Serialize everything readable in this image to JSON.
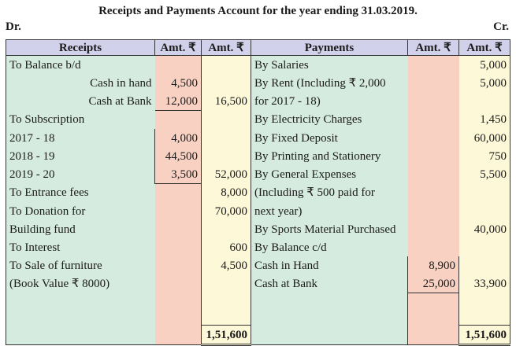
{
  "title": "Receipts and Payments Account for the year ending 31.03.2019.",
  "dr": "Dr.",
  "cr": "Cr.",
  "headers": {
    "receipts": "Receipts",
    "payments": "Payments",
    "amt": "Amt. ₹"
  },
  "rows": [
    {
      "r": "To Balance b/d",
      "ra": "",
      "rb": "",
      "p": "By Salaries",
      "pa": "",
      "pb": "5,000"
    },
    {
      "r": "Cash in hand",
      "ra": "4,500",
      "rb": "",
      "p": "By Rent (Including ₹ 2,000",
      "pa": "",
      "pb": "5,000"
    },
    {
      "r": "Cash at Bank",
      "ra": "12,000",
      "rb": "16,500",
      "p": "for 2017 - 18)",
      "pa": "",
      "pb": ""
    },
    {
      "r": "To Subscription",
      "ra": "",
      "rb": "",
      "p": "By Electricity Charges",
      "pa": "",
      "pb": "1,450"
    },
    {
      "r": "2017 - 18",
      "ra": "4,000",
      "rb": "",
      "p": "By Fixed Deposit",
      "pa": "",
      "pb": "60,000"
    },
    {
      "r": "2018 - 19",
      "ra": "44,500",
      "rb": "",
      "p": "By Printing and Stationery",
      "pa": "",
      "pb": "750"
    },
    {
      "r": "2019 - 20",
      "ra": "3,500",
      "rb": "52,000",
      "p": "By General Expenses",
      "pa": "",
      "pb": "5,500"
    },
    {
      "r": "To Entrance fees",
      "ra": "",
      "rb": "8,000",
      "p": "(Including ₹ 500 paid for",
      "pa": "",
      "pb": ""
    },
    {
      "r": "To Donation for",
      "ra": "",
      "rb": "70,000",
      "p": "next year)",
      "pa": "",
      "pb": ""
    },
    {
      "r": "Building fund",
      "ra": "",
      "rb": "",
      "p": "By Sports Material Purchased",
      "pa": "",
      "pb": "40,000"
    },
    {
      "r": "To Interest",
      "ra": "",
      "rb": "600",
      "p": "By Balance c/d",
      "pa": "",
      "pb": ""
    },
    {
      "r": "To Sale of furniture",
      "ra": "",
      "rb": "4,500",
      "p": "Cash in Hand",
      "pa": "8,900",
      "pb": ""
    },
    {
      "r": "(Book Value ₹ 8000)",
      "ra": "",
      "rb": "",
      "p": "Cash at Bank",
      "pa": "25,000",
      "pb": "33,900"
    }
  ],
  "totals": {
    "receipts": "1,51,600",
    "payments": "1,51,600"
  }
}
